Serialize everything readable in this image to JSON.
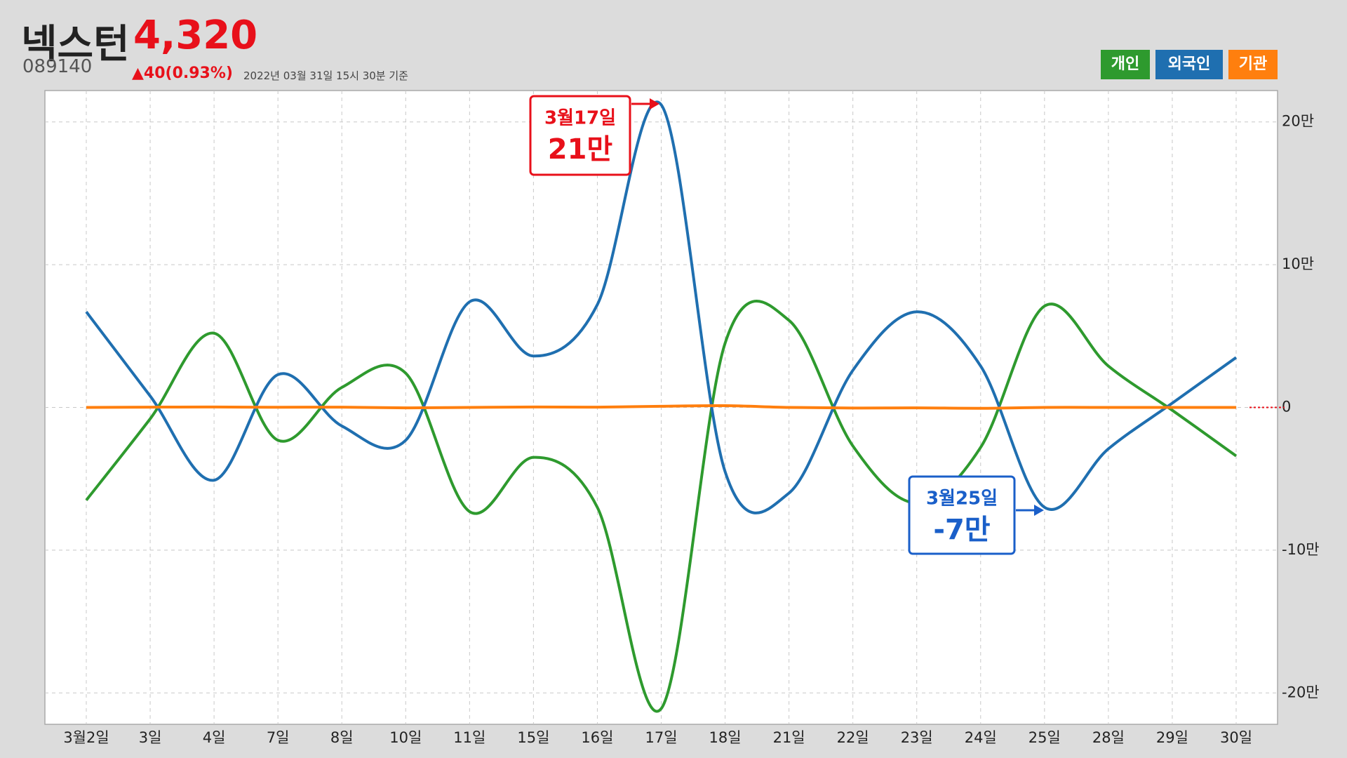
{
  "header": {
    "name": "넥스턴",
    "price": "4,320",
    "code": "089140",
    "change": "▲40(0.93%)",
    "timestamp": "2022년 03월 31일 15시 30분 기준"
  },
  "chart_data": {
    "type": "line",
    "categories": [
      "3월2일",
      "3일",
      "4일",
      "7일",
      "8일",
      "10일",
      "11일",
      "15일",
      "16일",
      "17일",
      "18일",
      "21일",
      "22일",
      "23일",
      "24일",
      "25일",
      "28일",
      "29일",
      "30일"
    ],
    "series": [
      {
        "name": "개인",
        "color": "#2e9a2e",
        "values": [
          -65000,
          -8000,
          52000,
          -23000,
          14000,
          24000,
          -73000,
          -35000,
          -70000,
          -211000,
          45000,
          61000,
          -27000,
          -67000,
          -28000,
          71000,
          29000,
          -2000,
          -34000
        ]
      },
      {
        "name": "외국인",
        "color": "#1f6fb0",
        "values": [
          67000,
          8000,
          -51000,
          23000,
          -13000,
          -23000,
          74000,
          36000,
          72000,
          212000,
          -45000,
          -60000,
          26000,
          67000,
          29000,
          -70000,
          -29000,
          3000,
          35000
        ]
      },
      {
        "name": "기관",
        "color": "#ff7f0e",
        "values": [
          0,
          200,
          300,
          100,
          200,
          -300,
          0,
          300,
          200,
          800,
          1200,
          0,
          -400,
          -300,
          -600,
          0,
          0,
          0,
          0
        ]
      }
    ],
    "ylim": [
      -222000,
      222000
    ],
    "yticks": [
      {
        "value": 200000,
        "label": "20만"
      },
      {
        "value": 100000,
        "label": "10만"
      },
      0,
      {
        "value": -100000,
        "label": "-10만"
      },
      {
        "value": -200000,
        "label": "-20만"
      }
    ],
    "grid": true,
    "legend": "top-right",
    "annotations": [
      {
        "date": "3월17일",
        "label": "21만",
        "color": "#e8101a"
      },
      {
        "date": "3월25일",
        "label": "-7만",
        "color": "#1a5fc9"
      }
    ]
  }
}
